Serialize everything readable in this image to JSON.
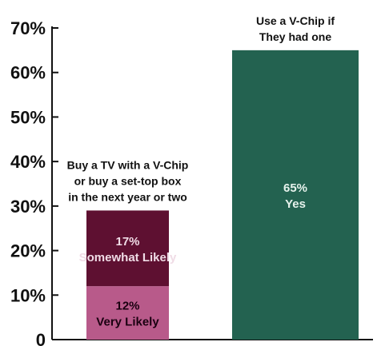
{
  "chart_data": {
    "type": "bar",
    "ylim": [
      0,
      70
    ],
    "y_ticks": [
      {
        "value": 0,
        "label": "0"
      },
      {
        "value": 10,
        "label": "10%"
      },
      {
        "value": 20,
        "label": "20%"
      },
      {
        "value": 30,
        "label": "30%"
      },
      {
        "value": 40,
        "label": "40%"
      },
      {
        "value": 50,
        "label": "50%"
      },
      {
        "value": 60,
        "label": "60%"
      },
      {
        "value": 70,
        "label": "70%"
      }
    ],
    "bars": [
      {
        "category_lines": [
          "Buy a TV with a V-Chip",
          "or buy a set-top box",
          "in the next year or two"
        ],
        "segments": [
          {
            "value": 12,
            "value_label": "12%",
            "name": "Very Likely",
            "color": "#b85a8a",
            "text_color": "#1a0010"
          },
          {
            "value": 17,
            "value_label": "17%",
            "name": "Somewhat Likely",
            "color": "#5e1031",
            "text_color": "#f0dce6"
          }
        ]
      },
      {
        "category_lines": [
          "Use a V-Chip if",
          "They had one"
        ],
        "segments": [
          {
            "value": 65,
            "value_label": "65%",
            "name": "Yes",
            "color": "#236250",
            "text_color": "#e6f2ec"
          }
        ]
      }
    ],
    "grid": false,
    "legend": "none"
  }
}
